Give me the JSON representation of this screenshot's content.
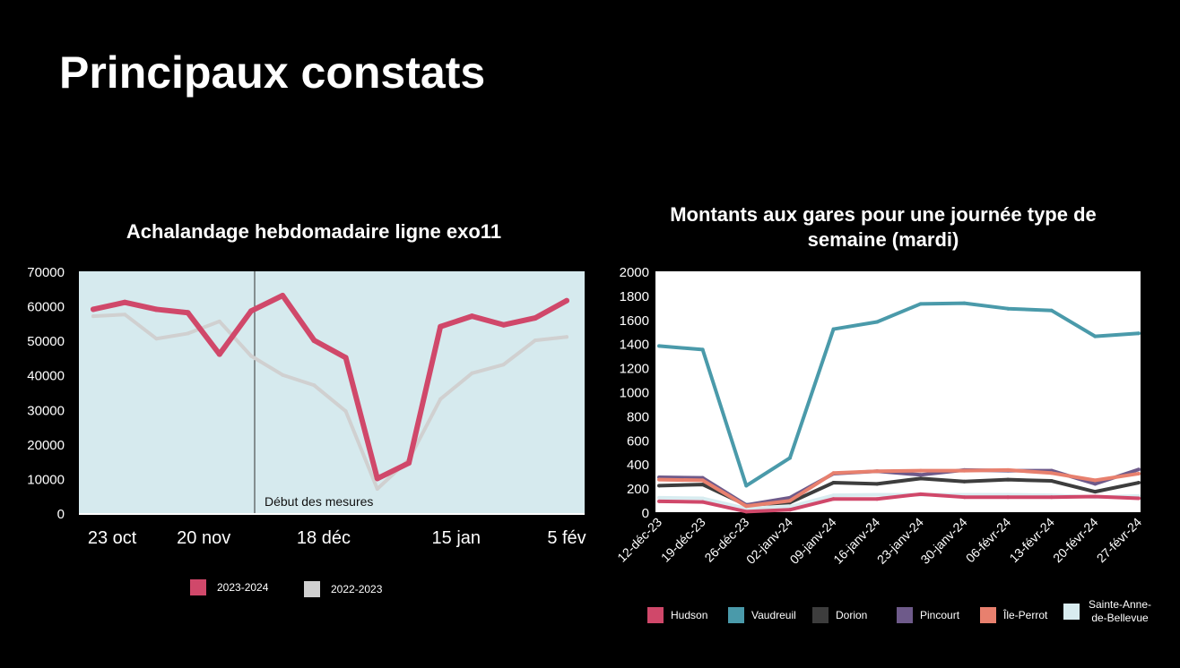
{
  "page_title": "Principaux constats",
  "chart_data": [
    {
      "type": "line",
      "title": "Achalandage hebdomadaire ligne exo11",
      "ylim": [
        0,
        70000
      ],
      "yticks": [
        0,
        10000,
        20000,
        30000,
        40000,
        50000,
        60000,
        70000
      ],
      "xtick_labels": [
        "23 oct",
        "20 nov",
        "18 déc",
        "15 jan",
        "5 fév"
      ],
      "annotation": "Début des mesures",
      "background": "#d6eaee",
      "grid": false,
      "legend": "bottom",
      "series": [
        {
          "name": "2023-2024",
          "color": "#d0486a",
          "values": [
            59000,
            61000,
            59000,
            58000,
            46000,
            58500,
            63000,
            50000,
            45000,
            10000,
            14500,
            54000,
            57000,
            54500,
            56500,
            61500
          ]
        },
        {
          "name": "2022-2023",
          "color": "#d0d0d0",
          "values": [
            57000,
            57500,
            50500,
            52000,
            55500,
            45500,
            40000,
            37000,
            29500,
            7000,
            15500,
            33000,
            40500,
            43000,
            50000,
            51000
          ]
        }
      ]
    },
    {
      "type": "line",
      "title": "Montants aux gares pour une journée type de semaine (mardi)",
      "ylim": [
        0,
        2000
      ],
      "yticks": [
        0,
        200,
        400,
        600,
        800,
        1000,
        1200,
        1400,
        1600,
        1800,
        2000
      ],
      "categories": [
        "12-déc-23",
        "19-déc-23",
        "26-déc-23",
        "02-janv-24",
        "09-janv-24",
        "16-janv-24",
        "23-janv-24",
        "30-janv-24",
        "06-févr-24",
        "13-févr-24",
        "20-févr-24",
        "27-févr-24"
      ],
      "grid": false,
      "legend": "bottom",
      "series": [
        {
          "name": "Hudson",
          "color": "#d0486a",
          "values": [
            90,
            85,
            5,
            20,
            110,
            110,
            150,
            125,
            125,
            125,
            130,
            115
          ]
        },
        {
          "name": "Vaudreuil",
          "color": "#4a9aaa",
          "values": [
            1380,
            1350,
            220,
            450,
            1520,
            1580,
            1730,
            1735,
            1690,
            1675,
            1460,
            1485
          ]
        },
        {
          "name": "Dorion",
          "color": "#3d3d3d",
          "values": [
            220,
            230,
            60,
            80,
            245,
            235,
            280,
            255,
            270,
            260,
            170,
            245
          ]
        },
        {
          "name": "Pincourt",
          "color": "#6e5a8a",
          "values": [
            290,
            285,
            60,
            120,
            320,
            340,
            310,
            350,
            345,
            345,
            235,
            355
          ]
        },
        {
          "name": "Île-Perrot",
          "color": "#e8806e",
          "values": [
            270,
            265,
            50,
            95,
            325,
            340,
            345,
            345,
            350,
            325,
            265,
            320
          ]
        },
        {
          "name": "Sainte-Anne-de-Bellevue",
          "color": "#d8ecf0",
          "values": [
            120,
            115,
            30,
            45,
            140,
            145,
            145,
            145,
            145,
            140,
            125,
            135
          ]
        }
      ]
    }
  ]
}
